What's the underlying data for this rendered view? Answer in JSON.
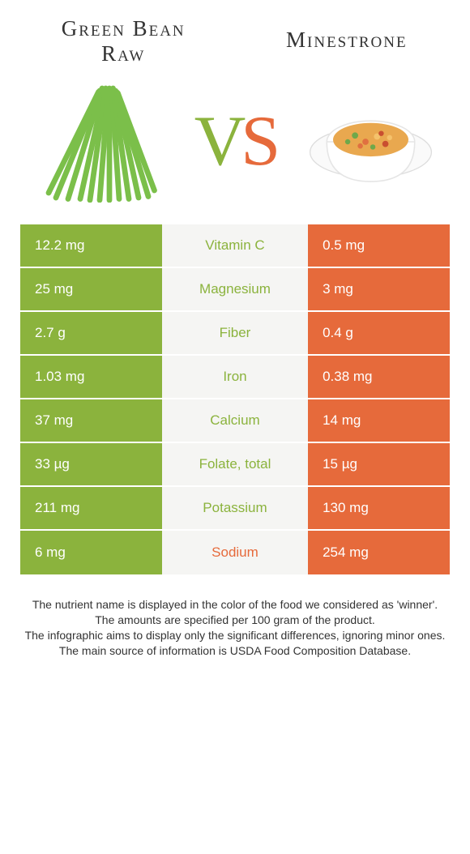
{
  "colors": {
    "left": "#8bb33d",
    "right": "#e66a3b",
    "mid_bg": "#f5f5f3",
    "mid_text_left": "#8bb33d",
    "mid_text_right": "#e66a3b"
  },
  "titles": {
    "left_line1": "Green Bean",
    "left_line2": "Raw",
    "right": "Minestrone"
  },
  "vs": {
    "v": "V",
    "s": "S"
  },
  "rows": [
    {
      "left": "12.2 mg",
      "mid": "Vitamin C",
      "right": "0.5 mg",
      "winner": "left"
    },
    {
      "left": "25 mg",
      "mid": "Magnesium",
      "right": "3 mg",
      "winner": "left"
    },
    {
      "left": "2.7 g",
      "mid": "Fiber",
      "right": "0.4 g",
      "winner": "left"
    },
    {
      "left": "1.03 mg",
      "mid": "Iron",
      "right": "0.38 mg",
      "winner": "left"
    },
    {
      "left": "37 mg",
      "mid": "Calcium",
      "right": "14 mg",
      "winner": "left"
    },
    {
      "left": "33 µg",
      "mid": "Folate, total",
      "right": "15 µg",
      "winner": "left"
    },
    {
      "left": "211 mg",
      "mid": "Potassium",
      "right": "130 mg",
      "winner": "left"
    },
    {
      "left": "6 mg",
      "mid": "Sodium",
      "right": "254 mg",
      "winner": "right"
    }
  ],
  "footer": {
    "l1": "The nutrient name is displayed in the color of the food we considered as 'winner'.",
    "l2": "The amounts are specified per 100 gram of the product.",
    "l3": "The infographic aims to display only the significant differences, ignoring minor ones.",
    "l4": "The main source of information is USDA Food Composition Database."
  }
}
